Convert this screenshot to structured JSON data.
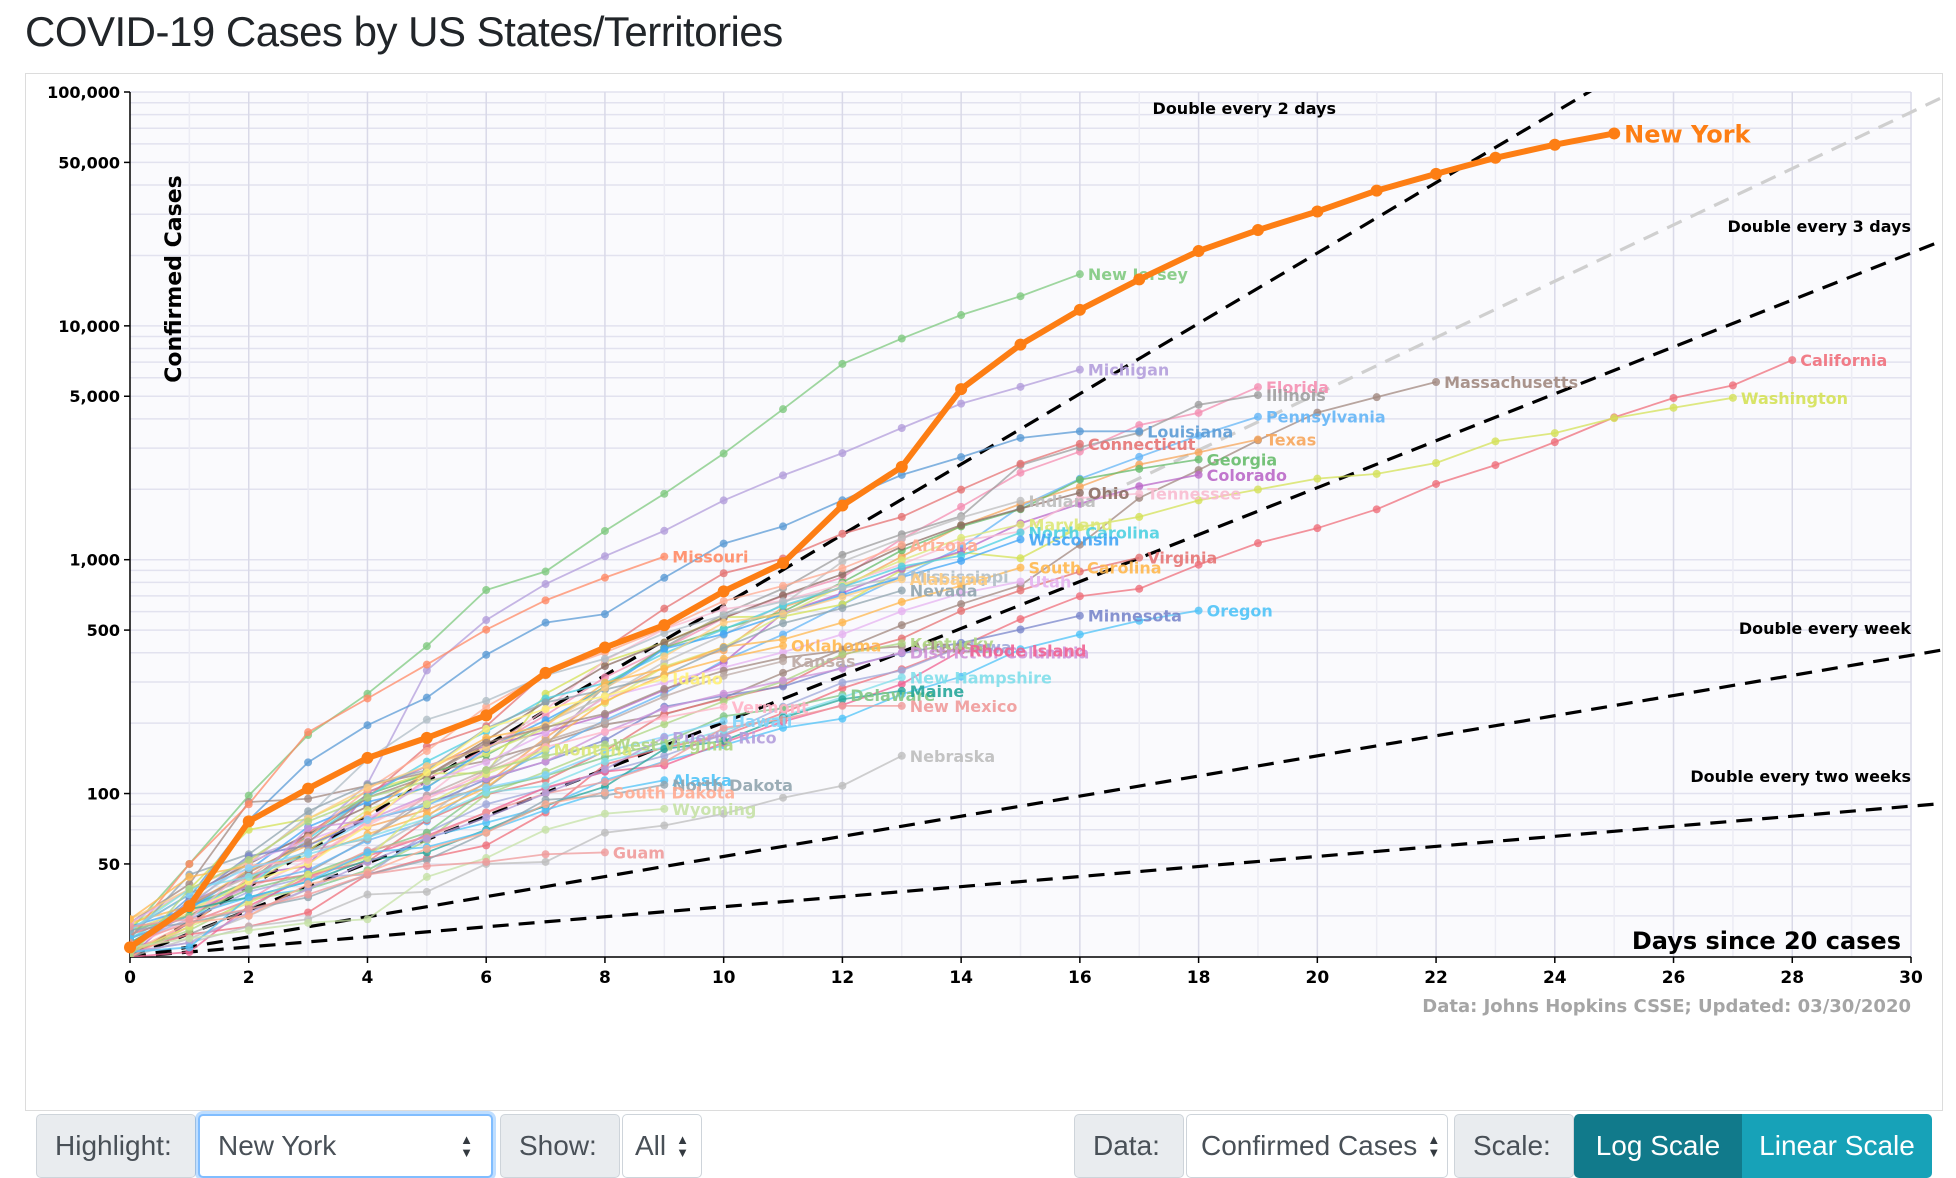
{
  "page": {
    "title": "COVID-19 Cases by US States/Territories"
  },
  "controls": {
    "highlight_label": "Highlight:",
    "highlight_value": "New York",
    "show_label": "Show:",
    "show_value": "All",
    "data_label": "Data:",
    "data_value": "Confirmed Cases",
    "scale_label": "Scale:",
    "log_button": "Log Scale",
    "linear_button": "Linear Scale"
  },
  "chart_data": {
    "type": "line",
    "title": "COVID-19 Cases by US States/Territories",
    "xlabel": "Days since 20 cases",
    "ylabel": "Confirmed Cases",
    "source": "Data: Johns Hopkins CSSE; Updated: 03/30/2020",
    "y_scale": "log",
    "xlim": [
      0,
      30
    ],
    "ylim": [
      20,
      100000
    ],
    "x_ticks": [
      "0",
      "2",
      "4",
      "6",
      "8",
      "10",
      "12",
      "14",
      "16",
      "18",
      "20",
      "22",
      "24",
      "26",
      "28",
      "30"
    ],
    "y_ticks": [
      "50",
      "100",
      "500",
      "1,000",
      "5,000",
      "10,000",
      "50,000",
      "100,000"
    ],
    "grid": true,
    "highlight_color": "#fd7e14",
    "reference_lines": [
      {
        "label": "Double every 2 days",
        "doubling_days": 2
      },
      {
        "label": "Double every 3 days",
        "doubling_days": 3
      },
      {
        "label": "Double every week",
        "doubling_days": 7
      },
      {
        "label": "Double every two weeks",
        "doubling_days": 14
      }
    ],
    "highlight_series": {
      "name": "New York",
      "x": [
        0,
        1,
        2,
        3,
        4,
        5,
        6,
        7,
        8,
        9,
        10,
        11,
        12,
        13,
        14,
        15,
        16,
        17,
        18,
        19,
        20,
        21,
        22,
        23,
        24,
        25
      ],
      "values": [
        22,
        33,
        76,
        105,
        142,
        173,
        216,
        328,
        421,
        525,
        732,
        967,
        1706,
        2495,
        5365,
        8310,
        11710,
        15800,
        20884,
        25681,
        30841,
        37877,
        44635,
        52318,
        59513,
        66497
      ]
    },
    "series": [
      {
        "name": "New Jersey",
        "color": "#7fc97f",
        "values": [
          26,
          50,
          98,
          178,
          267,
          427,
          742,
          890,
          1327,
          1914,
          2844,
          4402,
          6876,
          8825,
          11124,
          13386,
          16636
        ]
      },
      {
        "name": "Michigan",
        "color": "#b39ddb",
        "values": [
          25,
          33,
          53,
          65,
          110,
          336,
          552,
          787,
          1035,
          1329,
          1793,
          2294,
          2856,
          3657,
          4650,
          5486,
          6498
        ]
      },
      {
        "name": "Florida",
        "color": "#f48fb1",
        "values": [
          20,
          28,
          35,
          50,
          76,
          115,
          155,
          216,
          314,
          417,
          563,
          700,
          840,
          1227,
          1682,
          2355,
          2900,
          3763,
          4246,
          5473
        ]
      },
      {
        "name": "Illinois",
        "color": "#9e9e9e",
        "values": [
          22,
          25,
          32,
          46,
          64,
          93,
          105,
          161,
          288,
          422,
          585,
          753,
          1049,
          1285,
          1535,
          2538,
          3026,
          3491,
          4596,
          5057
        ]
      },
      {
        "name": "Louisiana",
        "color": "#5b9bd5",
        "values": [
          22,
          36,
          77,
          136,
          196,
          257,
          392,
          538,
          585,
          837,
          1172,
          1388,
          1795,
          2305,
          2746,
          3315,
          3540,
          3540
        ]
      },
      {
        "name": "Massachusetts",
        "color": "#a1887f",
        "values": [
          28,
          41,
          92,
          95,
          108,
          123,
          138,
          164,
          197,
          218,
          256,
          328,
          413,
          525,
          646,
          777,
          1159,
          1838,
          2417,
          3240,
          4257,
          4955,
          5752
        ]
      },
      {
        "name": "Pennsylvania",
        "color": "#64b5f6",
        "values": [
          22,
          33,
          41,
          47,
          63,
          76,
          112,
          152,
          206,
          268,
          371,
          479,
          644,
          851,
          1127,
          1687,
          2218,
          2751,
          3394,
          4087
        ]
      },
      {
        "name": "California",
        "color": "#ef6f7b",
        "values": [
          21,
          25,
          27,
          31,
          45,
          53,
          60,
          83,
          133,
          157,
          177,
          221,
          282,
          340,
          426,
          557,
          698,
          751,
          952,
          1177,
          1364,
          1642,
          2108,
          2538,
          3183,
          4060,
          4914,
          5565,
          7138
        ]
      },
      {
        "name": "Washington",
        "color": "#d4e157",
        "values": [
          27,
          39,
          70,
          78,
          102,
          122,
          122,
          267,
          366,
          442,
          568,
          572,
          643,
          904,
          1076,
          1014,
          1376,
          1524,
          1793,
          1996,
          2221,
          2328,
          2591,
          3207,
          3477,
          4030,
          4465,
          4923
        ]
      },
      {
        "name": "Texas",
        "color": "#f6a55b",
        "values": [
          21,
          27,
          43,
          57,
          72,
          85,
          110,
          173,
          260,
          348,
          410,
          627,
          759,
          1031,
          1396,
          1731,
          2052,
          2552,
          2877,
          3266
        ]
      },
      {
        "name": "Georgia",
        "color": "#66bb6a",
        "values": [
          22,
          33,
          42,
          66,
          99,
          121,
          146,
          199,
          287,
          420,
          507,
          600,
          800,
          1097,
          1387,
          1643,
          2198,
          2446,
          2683
        ]
      },
      {
        "name": "Colorado",
        "color": "#ba68c8",
        "values": [
          20,
          34,
          45,
          49,
          101,
          131,
          160,
          183,
          216,
          277,
          363,
          591,
          720,
          912,
          1086,
          1430,
          1734,
          2061,
          2307
        ]
      },
      {
        "name": "Connecticut",
        "color": "#e57373",
        "values": [
          24,
          30,
          41,
          68,
          96,
          159,
          194,
          327,
          415,
          618,
          875,
          1012,
          1291,
          1524,
          1993,
          2571,
          3128
        ]
      },
      {
        "name": "Tennessee",
        "color": "#f8bbd0",
        "values": [
          26,
          32,
          39,
          52,
          73,
          98,
          154,
          228,
          371,
          505,
          615,
          667,
          784,
          957,
          1203,
          1321,
          1834,
          1917
        ]
      },
      {
        "name": "Ohio",
        "color": "#8d6e63",
        "values": [
          26,
          37,
          50,
          67,
          88,
          119,
          169,
          247,
          351,
          442,
          564,
          704,
          867,
          1137,
          1406,
          1653,
          1933
        ]
      },
      {
        "name": "Indiana",
        "color": "#bdbdbd",
        "values": [
          20,
          24,
          30,
          39,
          56,
          79,
          126,
          201,
          259,
          365,
          477,
          645,
          981,
          1232,
          1513,
          1786
        ]
      },
      {
        "name": "Maryland",
        "color": "#dce775",
        "values": [
          26,
          32,
          41,
          57,
          85,
          107,
          149,
          190,
          244,
          349,
          423,
          580,
          775,
          994,
          1239,
          1413
        ]
      },
      {
        "name": "North Carolina",
        "color": "#4dd0e1",
        "values": [
          24,
          33,
          40,
          64,
          97,
          137,
          184,
          255,
          297,
          398,
          504,
          636,
          763,
          935,
          1040,
          1307
        ]
      },
      {
        "name": "Wisconsin",
        "color": "#42a5f5",
        "values": [
          27,
          32,
          47,
          72,
          92,
          106,
          155,
          206,
          281,
          416,
          481,
          585,
          707,
          842,
          989,
          1221
        ]
      },
      {
        "name": "Virginia",
        "color": "#e57373",
        "values": [
          25,
          30,
          41,
          45,
          51,
          77,
          99,
          114,
          152,
          219,
          254,
          290,
          391,
          460,
          604,
          739,
          890,
          1020
        ]
      },
      {
        "name": "South Carolina",
        "color": "#ffb74d",
        "values": [
          28,
          33,
          47,
          60,
          81,
          125,
          173,
          195,
          298,
          342,
          424,
          456,
          539,
          660,
          774,
          925
        ]
      },
      {
        "name": "Missouri",
        "color": "#ff8a65",
        "values": [
          24,
          50,
          90,
          183,
          255,
          356,
          502,
          670,
          838,
          1031
        ]
      },
      {
        "name": "Arizona",
        "color": "#ffab91",
        "values": [
          20,
          27,
          44,
          65,
          104,
          152,
          235,
          326,
          401,
          508,
          665,
          773,
          919,
          1157
        ]
      },
      {
        "name": "Mississippi",
        "color": "#b0bec5",
        "values": [
          21,
          34,
          50,
          80,
          140,
          207,
          249,
          320,
          377,
          485,
          579,
          663,
          758,
          847
        ]
      },
      {
        "name": "Utah",
        "color": "#e6b3f0",
        "values": [
          28,
          39,
          51,
          63,
          78,
          112,
          136,
          181,
          257,
          298,
          346,
          402,
          480,
          602,
          719,
          806
        ]
      },
      {
        "name": "Nevada",
        "color": "#90a4ae",
        "values": [
          24,
          45,
          55,
          84,
          109,
          126,
          190,
          245,
          278,
          321,
          420,
          535,
          621,
          738
        ]
      },
      {
        "name": "Alabama",
        "color": "#ffcc80",
        "values": [
          29,
          39,
          51,
          78,
          106,
          131,
          157,
          196,
          283,
          386,
          538,
          587,
          694,
          825
        ]
      },
      {
        "name": "Minnesota",
        "color": "#7986cb",
        "values": [
          21,
          35,
          54,
          60,
          77,
          89,
          115,
          137,
          169,
          235,
          262,
          287,
          346,
          398,
          441,
          503,
          576
        ]
      },
      {
        "name": "Oregon",
        "color": "#4fc3f7",
        "values": [
          24,
          30,
          36,
          39,
          47,
          65,
          75,
          88,
          114,
          137,
          161,
          191,
          209,
          266,
          316,
          414,
          479,
          548,
          606
        ]
      },
      {
        "name": "Oklahoma",
        "color": "#ffb74d",
        "values": [
          29,
          44,
          49,
          53,
          67,
          81,
          106,
          164,
          248,
          322,
          377,
          429
        ]
      },
      {
        "name": "Arkansas",
        "color": "#a1887f",
        "values": [
          22,
          33,
          46,
          62,
          96,
          118,
          165,
          192,
          219,
          280,
          335,
          381,
          409,
          426
        ]
      },
      {
        "name": "Kentucky",
        "color": "#aed581",
        "values": [
          21,
          26,
          35,
          39,
          47,
          63,
          99,
          124,
          157,
          198,
          248,
          302,
          394,
          439
        ]
      },
      {
        "name": "District of Columbia",
        "color": "#ce93d8",
        "values": [
          22,
          31,
          40,
          71,
          77,
          98,
          116,
          137,
          183,
          231,
          267,
          304,
          342,
          401
        ]
      },
      {
        "name": "Iowa",
        "color": "#9fa8da",
        "values": [
          23,
          29,
          38,
          44,
          45,
          68,
          90,
          105,
          124,
          145,
          179,
          235,
          298,
          336,
          424
        ]
      },
      {
        "name": "Rhode Island",
        "color": "#f06292",
        "values": [
          20,
          21,
          33,
          44,
          54,
          66,
          83,
          106,
          124,
          132,
          165,
          203,
          239,
          294,
          408
        ]
      },
      {
        "name": "Kansas",
        "color": "#bcaaa4",
        "values": [
          22,
          34,
          44,
          57,
          64,
          98,
          126,
          168,
          202,
          260,
          319,
          368
        ]
      },
      {
        "name": "Idaho",
        "color": "#fff176",
        "values": [
          23,
          31,
          42,
          50,
          73,
          123,
          189,
          230,
          261,
          310
        ]
      },
      {
        "name": "Delaware",
        "color": "#81c784",
        "values": [
          26,
          30,
          39,
          45,
          56,
          68,
          104,
          119,
          143,
          165,
          214,
          232,
          264
        ]
      },
      {
        "name": "Vermont",
        "color": "#ffb3c6",
        "values": [
          22,
          29,
          49,
          52,
          75,
          95,
          123,
          158,
          184,
          211,
          235
        ]
      },
      {
        "name": "New Hampshire",
        "color": "#80deea",
        "values": [
          26,
          39,
          44,
          55,
          65,
          78,
          101,
          108,
          137,
          158,
          187,
          214,
          258,
          314
        ]
      },
      {
        "name": "Maine",
        "color": "#26a69a",
        "values": [
          23,
          32,
          36,
          42,
          52,
          56,
          70,
          89,
          107,
          155,
          168,
          211,
          253,
          275
        ]
      },
      {
        "name": "New Mexico",
        "color": "#ef9a9a",
        "values": [
          23,
          28,
          35,
          43,
          57,
          65,
          83,
          100,
          112,
          136,
          191,
          208,
          237,
          237
        ]
      },
      {
        "name": "Nebraska",
        "color": "#bdbdbd",
        "values": [
          21,
          23,
          27,
          29,
          37,
          38,
          50,
          51,
          68,
          73,
          82,
          96,
          108,
          145
        ]
      },
      {
        "name": "Hawaii",
        "color": "#81d4fa",
        "values": [
          26,
          37,
          48,
          56,
          77,
          90,
          106,
          120,
          151,
          175,
          204
        ]
      },
      {
        "name": "Puerto Rico",
        "color": "#b39ddb",
        "values": [
          21,
          23,
          31,
          39,
          51,
          64,
          79,
          100,
          127,
          174
        ]
      },
      {
        "name": "Montana",
        "color": "#dce775",
        "values": [
          21,
          27,
          34,
          45,
          53,
          90,
          121,
          154
        ]
      },
      {
        "name": "Alaska",
        "color": "#4fc3f7",
        "values": [
          21,
          22,
          36,
          42,
          56,
          59,
          69,
          85,
          102,
          114
        ]
      },
      {
        "name": "North Dakota",
        "color": "#90a4ae",
        "values": [
          26,
          28,
          32,
          36,
          45,
          52,
          68,
          94,
          98,
          109
        ]
      },
      {
        "name": "South Dakota",
        "color": "#ffab91",
        "values": [
          21,
          28,
          30,
          41,
          46,
          58,
          68,
          90,
          101
        ]
      },
      {
        "name": "West Virginia",
        "color": "#aed581",
        "values": [
          20,
          39,
          52,
          76,
          96,
          113,
          126,
          145,
          162
        ]
      },
      {
        "name": "Wyoming",
        "color": "#c5e1a5",
        "values": [
          22,
          24,
          26,
          28,
          29,
          44,
          53,
          70,
          82,
          86
        ]
      },
      {
        "name": "Guam",
        "color": "#ef9a9a",
        "values": [
          27,
          29,
          32,
          37,
          45,
          49,
          51,
          55,
          56
        ]
      }
    ]
  }
}
